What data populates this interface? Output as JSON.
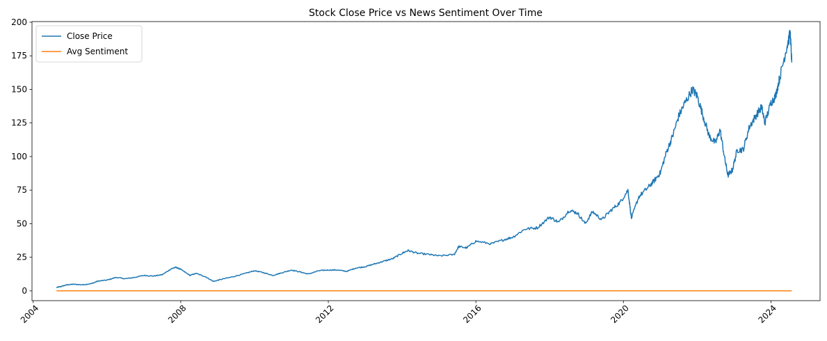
{
  "chart_data": {
    "type": "line",
    "title": "Stock Close Price vs News Sentiment Over Time",
    "xlabel": "",
    "ylabel": "",
    "xlim": [
      "2003-12-20",
      "2025-05-01"
    ],
    "ylim": [
      -7.3,
      200.5
    ],
    "x_ticks": [
      "2004",
      "2008",
      "2012",
      "2016",
      "2020",
      "2024"
    ],
    "y_ticks": [
      0,
      25,
      50,
      75,
      100,
      125,
      150,
      175,
      200
    ],
    "grid": false,
    "legend": "top-left",
    "series": [
      {
        "name": "Close Price",
        "color": "#1f77b4",
        "points": [
          [
            "2004-08-19",
            2.5
          ],
          [
            "2004-10-01",
            3.2
          ],
          [
            "2004-12-01",
            4.5
          ],
          [
            "2005-02-01",
            4.9
          ],
          [
            "2005-05-01",
            4.5
          ],
          [
            "2005-08-01",
            5.4
          ],
          [
            "2005-10-01",
            7.2
          ],
          [
            "2006-01-01",
            8.0
          ],
          [
            "2006-04-01",
            10.0
          ],
          [
            "2006-07-01",
            9.0
          ],
          [
            "2006-10-01",
            10.0
          ],
          [
            "2007-01-01",
            11.5
          ],
          [
            "2007-04-01",
            11.0
          ],
          [
            "2007-07-01",
            12.0
          ],
          [
            "2007-10-01",
            16.5
          ],
          [
            "2007-11-15",
            17.5
          ],
          [
            "2008-01-01",
            16.0
          ],
          [
            "2008-04-01",
            11.5
          ],
          [
            "2008-06-01",
            13.0
          ],
          [
            "2008-09-01",
            10.5
          ],
          [
            "2008-11-20",
            7.0
          ],
          [
            "2009-02-01",
            8.5
          ],
          [
            "2009-06-01",
            10.5
          ],
          [
            "2009-10-01",
            13.0
          ],
          [
            "2010-01-01",
            15.0
          ],
          [
            "2010-04-01",
            13.5
          ],
          [
            "2010-07-01",
            11.5
          ],
          [
            "2010-10-01",
            13.5
          ],
          [
            "2011-01-01",
            15.5
          ],
          [
            "2011-04-01",
            14.0
          ],
          [
            "2011-06-15",
            12.5
          ],
          [
            "2011-10-01",
            15.0
          ],
          [
            "2012-01-01",
            15.5
          ],
          [
            "2012-04-01",
            15.5
          ],
          [
            "2012-07-01",
            14.5
          ],
          [
            "2012-10-01",
            17.0
          ],
          [
            "2013-01-01",
            18.0
          ],
          [
            "2013-04-01",
            20.0
          ],
          [
            "2013-07-01",
            22.0
          ],
          [
            "2013-10-01",
            24.0
          ],
          [
            "2014-01-01",
            28.0
          ],
          [
            "2014-03-01",
            30.0
          ],
          [
            "2014-06-01",
            28.0
          ],
          [
            "2014-10-01",
            27.0
          ],
          [
            "2015-01-01",
            26.0
          ],
          [
            "2015-06-01",
            27.0
          ],
          [
            "2015-07-15",
            33.0
          ],
          [
            "2015-10-01",
            32.0
          ],
          [
            "2016-01-01",
            37.0
          ],
          [
            "2016-06-01",
            35.0
          ],
          [
            "2016-10-01",
            38.0
          ],
          [
            "2017-01-01",
            40.0
          ],
          [
            "2017-05-01",
            46.0
          ],
          [
            "2017-09-01",
            47.0
          ],
          [
            "2018-01-01",
            55.0
          ],
          [
            "2018-04-01",
            51.0
          ],
          [
            "2018-07-15",
            60.0
          ],
          [
            "2018-10-01",
            58.0
          ],
          [
            "2018-12-20",
            50.0
          ],
          [
            "2019-03-01",
            59.0
          ],
          [
            "2019-06-01",
            53.0
          ],
          [
            "2019-09-01",
            60.0
          ],
          [
            "2019-12-01",
            66.0
          ],
          [
            "2020-02-15",
            75.0
          ],
          [
            "2020-03-20",
            54.0
          ],
          [
            "2020-06-01",
            70.0
          ],
          [
            "2020-09-01",
            77.0
          ],
          [
            "2020-11-01",
            82.0
          ],
          [
            "2021-01-01",
            88.0
          ],
          [
            "2021-03-01",
            103.0
          ],
          [
            "2021-05-01",
            115.0
          ],
          [
            "2021-07-01",
            130.0
          ],
          [
            "2021-09-01",
            140.0
          ],
          [
            "2021-11-15",
            150.0
          ],
          [
            "2022-01-01",
            145.0
          ],
          [
            "2022-03-01",
            130.0
          ],
          [
            "2022-05-01",
            115.0
          ],
          [
            "2022-07-01",
            110.0
          ],
          [
            "2022-08-15",
            120.0
          ],
          [
            "2022-10-01",
            98.0
          ],
          [
            "2022-11-01",
            86.0
          ],
          [
            "2022-12-15",
            90.0
          ],
          [
            "2023-02-01",
            105.0
          ],
          [
            "2023-04-01",
            105.0
          ],
          [
            "2023-06-01",
            122.0
          ],
          [
            "2023-08-01",
            130.0
          ],
          [
            "2023-10-01",
            137.0
          ],
          [
            "2023-11-01",
            125.0
          ],
          [
            "2024-01-01",
            140.0
          ],
          [
            "2024-02-15",
            145.0
          ],
          [
            "2024-04-01",
            160.0
          ],
          [
            "2024-06-01",
            180.0
          ],
          [
            "2024-07-10",
            192.0
          ],
          [
            "2024-07-25",
            170.0
          ]
        ]
      },
      {
        "name": "Avg Sentiment",
        "color": "#ff7f0e",
        "points": [
          [
            "2004-08-19",
            0.0
          ],
          [
            "2024-07-25",
            0.0
          ]
        ]
      }
    ]
  }
}
